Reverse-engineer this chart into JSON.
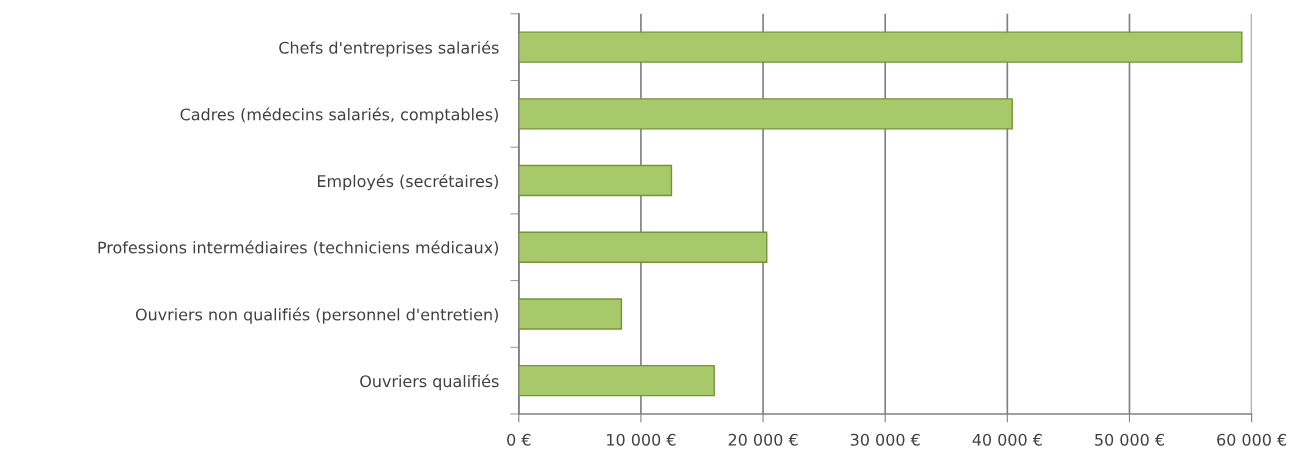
{
  "chart_data": {
    "type": "bar",
    "orientation": "horizontal",
    "categories": [
      "Chefs d'entreprises salariés",
      "Cadres (médecins salariés, comptables)",
      "Employés (secrétaires)",
      "Professions intermédiaires (techniciens médicaux)",
      "Ouvriers non qualifiés (personnel d'entretien)",
      "Ouvriers qualifiés"
    ],
    "values": [
      59200,
      40400,
      12500,
      20300,
      8400,
      16000
    ],
    "color": "#a8c96a",
    "xlim": [
      0,
      60000
    ],
    "xticks": [
      {
        "value": 0,
        "label": "0 €"
      },
      {
        "value": 10000,
        "label": "10 000 €"
      },
      {
        "value": 20000,
        "label": "20 000 €"
      },
      {
        "value": 30000,
        "label": "30 000 €"
      },
      {
        "value": 40000,
        "label": "40 000 €"
      },
      {
        "value": 50000,
        "label": "50 000 €"
      },
      {
        "value": 60000,
        "label": "60 000 €"
      }
    ],
    "grid": "x"
  }
}
